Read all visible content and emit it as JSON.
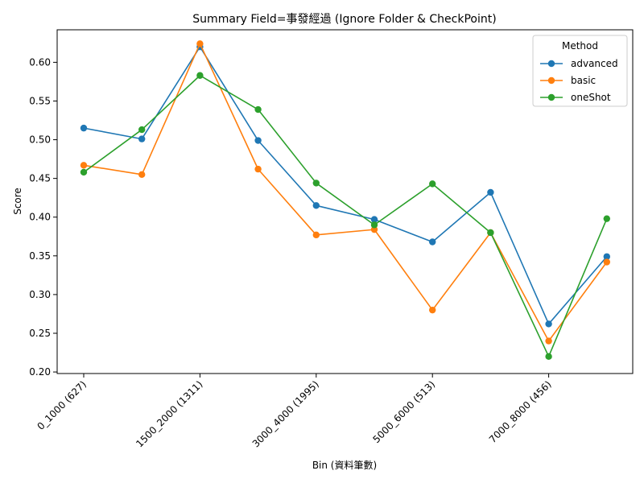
{
  "chart_data": {
    "type": "line",
    "title": "Summary Field=事發經過 (Ignore Folder & CheckPoint)",
    "xlabel": "Bin (資料筆數)",
    "ylabel": "Score",
    "x_tick_labels": [
      "0_1000 (627)",
      "1500_2000 (1311)",
      "3000_4000 (1995)",
      "5000_6000 (513)",
      "7000_8000 (456)"
    ],
    "x_tick_positions": [
      0,
      2,
      4,
      6,
      8
    ],
    "x_count": 10,
    "ylim": [
      0.198,
      0.642
    ],
    "y_ticks": [
      0.2,
      0.25,
      0.3,
      0.35,
      0.4,
      0.45,
      0.5,
      0.55,
      0.6
    ],
    "legend": {
      "title": "Method",
      "placement": "top-right"
    },
    "grid": false,
    "series": [
      {
        "name": "advanced",
        "color": "#1f77b4",
        "values": [
          0.515,
          0.501,
          0.62,
          0.499,
          0.415,
          0.397,
          0.368,
          0.432,
          0.262,
          0.349
        ]
      },
      {
        "name": "basic",
        "color": "#ff7f0e",
        "values": [
          0.467,
          0.455,
          0.624,
          0.462,
          0.377,
          0.384,
          0.28,
          0.38,
          0.24,
          0.342
        ]
      },
      {
        "name": "oneShot",
        "color": "#2ca02c",
        "values": [
          0.458,
          0.513,
          0.583,
          0.539,
          0.444,
          0.39,
          0.443,
          0.38,
          0.22,
          0.398
        ]
      }
    ]
  }
}
